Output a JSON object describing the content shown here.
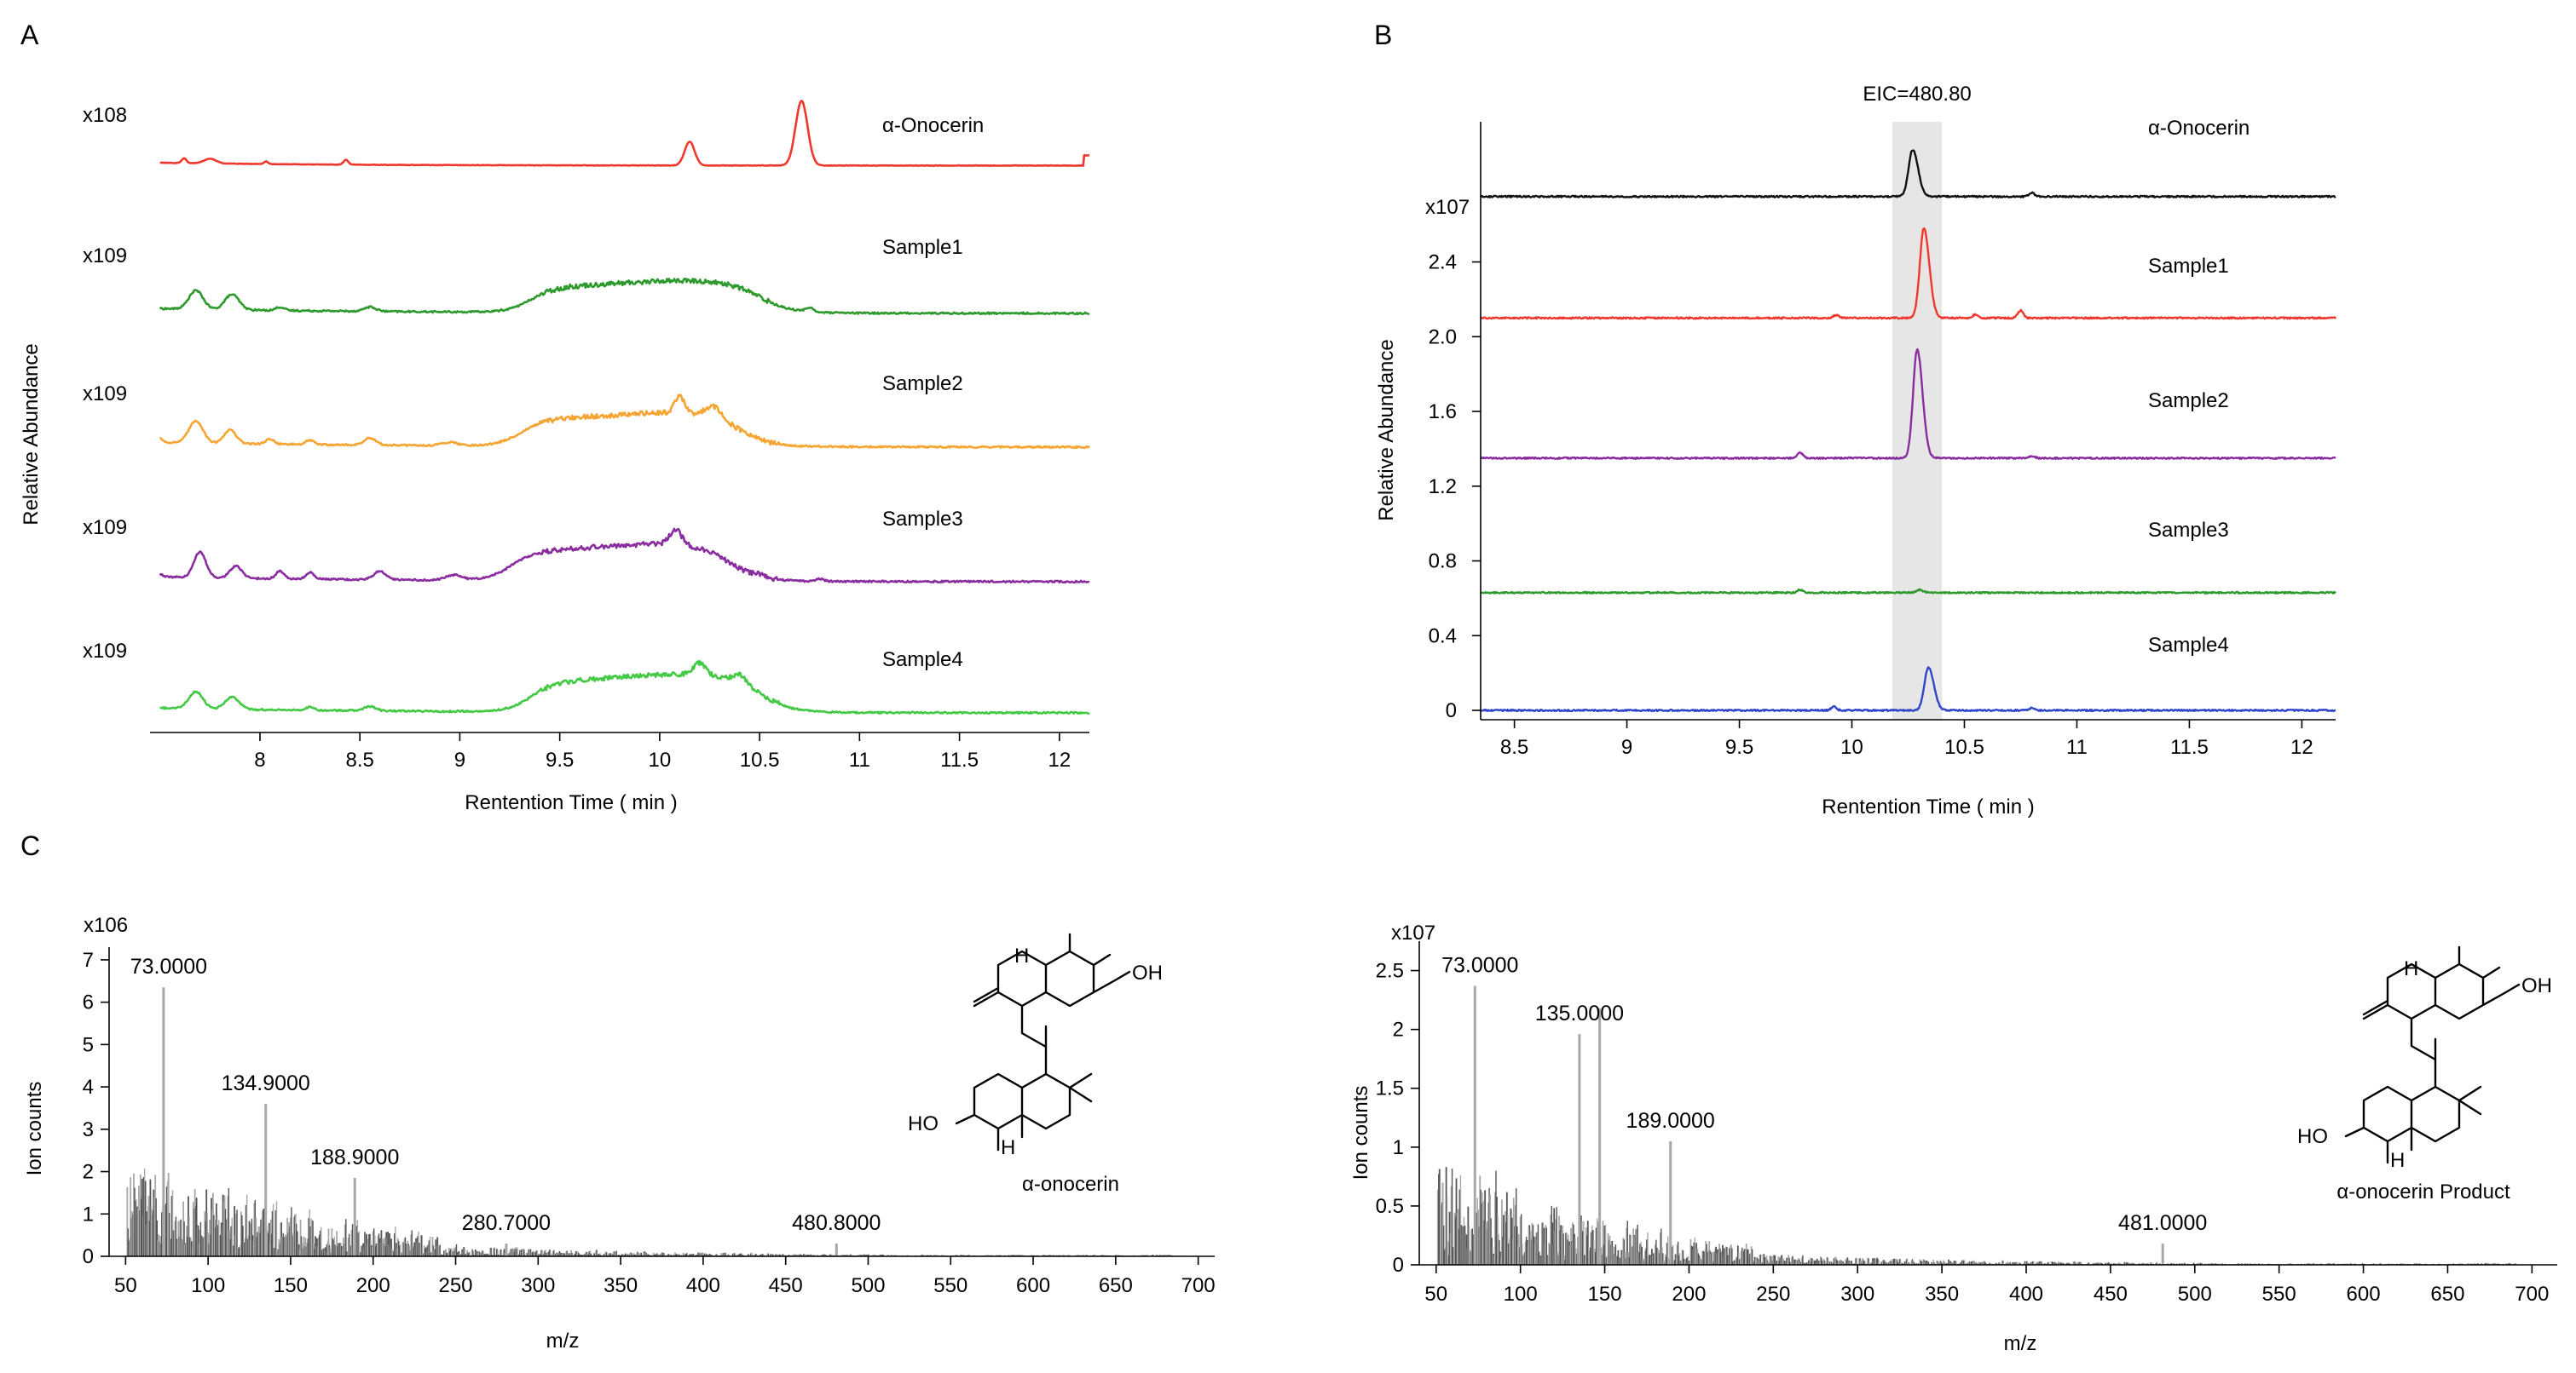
{
  "panels": {
    "A": "A",
    "B": "B",
    "C": "C"
  },
  "colors": {
    "red": "#f0372d",
    "green": "#2e9a2e",
    "orange": "#f7a532",
    "purple": "#8a2d9e",
    "lightgreen": "#44c944",
    "black": "#111111",
    "blue": "#2f45c9",
    "bar_dark": "#555555",
    "bar_light": "#a8a8a8",
    "band": "#e6e6e6"
  },
  "chart_data": [
    {
      "id": "A",
      "type": "line",
      "title": "",
      "xlabel": "Rentention Time ( min )",
      "ylabel": "Relative Abundance",
      "xlim": [
        7.45,
        12.15
      ],
      "xticks": [
        8,
        8.5,
        9,
        9.5,
        10,
        10.5,
        11,
        11.5,
        12
      ],
      "xtick_labels": [
        "8",
        "8.5",
        "9",
        "9.5",
        "10",
        "10.5",
        "11",
        "11.5",
        "12"
      ],
      "series": [
        {
          "name": "α-Onocerin",
          "scale": "x108",
          "color": "#f0372d"
        },
        {
          "name": "Sample1",
          "scale": "x109",
          "color": "#2e9a2e"
        },
        {
          "name": "Sample2",
          "scale": "x109",
          "color": "#f7a532"
        },
        {
          "name": "Sample3",
          "scale": "x109",
          "color": "#8a2d9e"
        },
        {
          "name": "Sample4",
          "scale": "x109",
          "color": "#44c944"
        }
      ]
    },
    {
      "id": "B",
      "type": "line",
      "title": "EIC=480.80",
      "xlabel": "Rentention Time ( min )",
      "ylabel": "Relative Abundance",
      "xlim": [
        8.35,
        12.15
      ],
      "ylim": [
        -0.05,
        3.15
      ],
      "xticks": [
        8.5,
        9,
        9.5,
        10,
        10.5,
        11,
        11.5,
        12
      ],
      "xtick_labels": [
        "8.5",
        "9",
        "9.5",
        "10",
        "10.5",
        "11",
        "11.5",
        "12"
      ],
      "yticks": [
        0,
        0.4,
        0.8,
        1.2,
        1.6,
        2.0,
        2.4
      ],
      "ytick_labels": [
        "0",
        "0.4",
        "0.8",
        "1.2",
        "1.6",
        "2.0",
        "2.4"
      ],
      "highlight_range": [
        10.18,
        10.4
      ],
      "scale": "x107",
      "series": [
        {
          "name": "α-Onocerin",
          "color": "#111111",
          "baseline": 2.75,
          "peak_rt": 10.27,
          "peak_height": 0.25
        },
        {
          "name": "Sample1",
          "color": "#f0372d",
          "baseline": 2.1,
          "peak_rt": 10.32,
          "peak_height": 0.48
        },
        {
          "name": "Sample2",
          "color": "#8a2d9e",
          "baseline": 1.35,
          "peak_rt": 10.29,
          "peak_height": 0.58
        },
        {
          "name": "Sample3",
          "color": "#2e9a2e",
          "baseline": 0.63,
          "peak_rt": 10.3,
          "peak_height": 0.005
        },
        {
          "name": "Sample4",
          "color": "#2f45c9",
          "baseline": 0.0,
          "peak_rt": 10.34,
          "peak_height": 0.23
        }
      ]
    },
    {
      "id": "C1",
      "type": "bar",
      "title": "",
      "xlabel": "m/z",
      "ylabel": "Ion counts",
      "scale": "x106",
      "xlim": [
        40,
        710
      ],
      "ylim": [
        0,
        7.3
      ],
      "xticks": [
        50,
        100,
        150,
        200,
        250,
        300,
        350,
        400,
        450,
        500,
        550,
        600,
        650,
        700
      ],
      "xtick_labels": [
        "50",
        "100",
        "150",
        "200",
        "250",
        "300",
        "350",
        "400",
        "450",
        "500",
        "550",
        "600",
        "650",
        "700"
      ],
      "yticks": [
        0,
        1,
        2,
        3,
        4,
        5,
        6,
        7
      ],
      "ytick_labels": [
        "0",
        "1",
        "2",
        "3",
        "4",
        "5",
        "6",
        "7"
      ],
      "major_peaks": [
        {
          "mz": 73.0,
          "value": 6.35,
          "label": "73.0000"
        },
        {
          "mz": 134.9,
          "value": 3.6,
          "label": "134.9000"
        },
        {
          "mz": 188.9,
          "value": 1.85,
          "label": "188.9000"
        },
        {
          "mz": 280.7,
          "value": 0.3,
          "label": "280.7000"
        },
        {
          "mz": 480.8,
          "value": 0.3,
          "label": "480.8000"
        }
      ],
      "compound_label": "α-onocerin"
    },
    {
      "id": "C2",
      "type": "bar",
      "title": "",
      "xlabel": "m/z",
      "ylabel": "Ion counts",
      "scale": "x107",
      "xlim": [
        40,
        715
      ],
      "ylim": [
        0,
        2.75
      ],
      "xticks": [
        50,
        100,
        150,
        200,
        250,
        300,
        350,
        400,
        450,
        500,
        550,
        600,
        650,
        700
      ],
      "xtick_labels": [
        "50",
        "100",
        "150",
        "200",
        "250",
        "300",
        "350",
        "400",
        "450",
        "500",
        "550",
        "600",
        "650",
        "700"
      ],
      "yticks": [
        0,
        0.5,
        1,
        1.5,
        2,
        2.5
      ],
      "ytick_labels": [
        "0",
        "0.5",
        "1",
        "1.5",
        "2",
        "2.5"
      ],
      "major_peaks": [
        {
          "mz": 73.0,
          "value": 2.37,
          "label": "73.0000"
        },
        {
          "mz": 135.0,
          "value": 1.96,
          "label": "135.0000"
        },
        {
          "mz": 147.0,
          "value": 2.18,
          "label": ""
        },
        {
          "mz": 189.0,
          "value": 1.05,
          "label": "189.0000"
        },
        {
          "mz": 481.0,
          "value": 0.18,
          "label": "481.0000"
        }
      ],
      "compound_label": "α-onocerin Product"
    }
  ],
  "molecule": {
    "h_label": "H",
    "oh_label": "OH",
    "ho_label": "HO"
  }
}
